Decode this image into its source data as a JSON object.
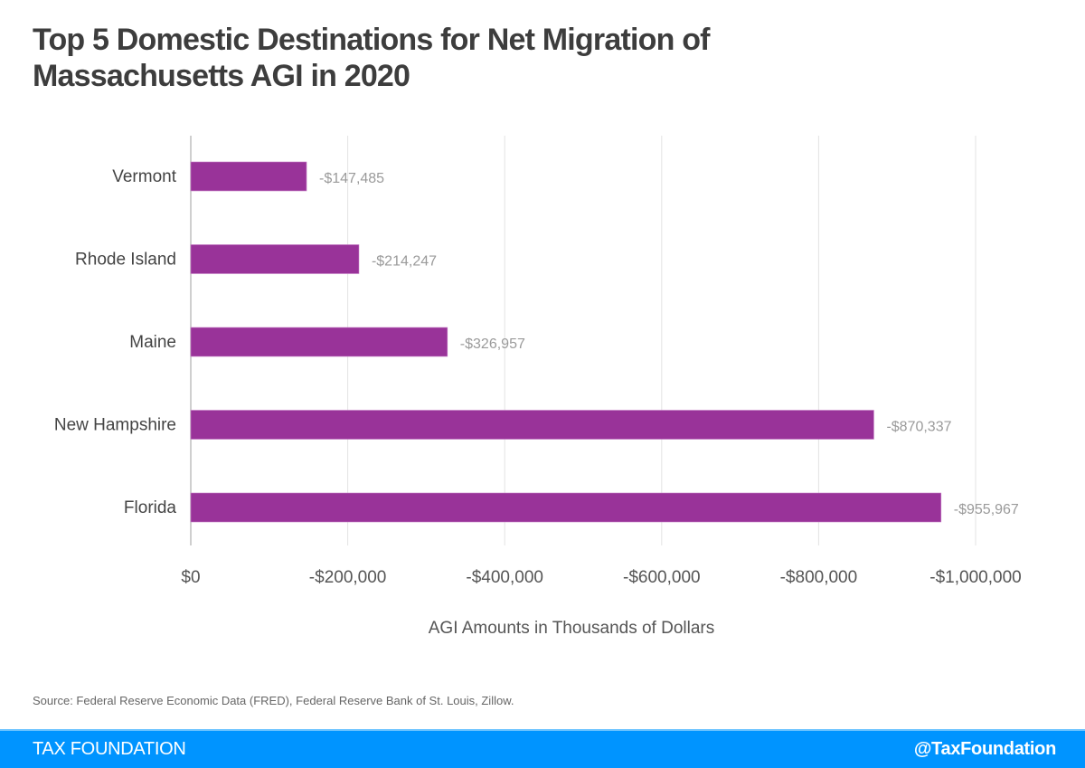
{
  "header": {
    "title_line1": "Top 5 Domestic Destinations for Net Migration of",
    "title_line2": "Massachusetts AGI in 2020"
  },
  "chart_data": {
    "type": "bar",
    "orientation": "horizontal",
    "title": "Top 5 Domestic Destinations for Net Migration of Massachusetts AGI in 2020",
    "categories": [
      "Vermont",
      "Rhode Island",
      "Maine",
      "New Hampshire",
      "Florida"
    ],
    "values": [
      -147485,
      -214247,
      -326957,
      -870337,
      -955967
    ],
    "data_labels": [
      "-$147,485",
      "-$214,247",
      "-$326,957",
      "-$870,337",
      "-$955,967"
    ],
    "xlabel": "AGI Amounts in Thousands of Dollars",
    "ylabel": "",
    "xlim": [
      0,
      -1000000
    ],
    "x_ticks": [
      0,
      -200000,
      -400000,
      -600000,
      -800000,
      -1000000
    ],
    "x_tick_labels": [
      "$0",
      "-$200,000",
      "-$400,000",
      "-$600,000",
      "-$800,000",
      "-$1,000,000"
    ],
    "grid": "vertical",
    "bar_color": "#993399",
    "legend": "none"
  },
  "footer": {
    "source": "Source: Federal Reserve Economic Data (FRED), Federal Reserve Bank of St. Louis, Zillow.",
    "brand": "TAX FOUNDATION",
    "handle": "@TaxFoundation",
    "bar_color": "#0094ff"
  }
}
